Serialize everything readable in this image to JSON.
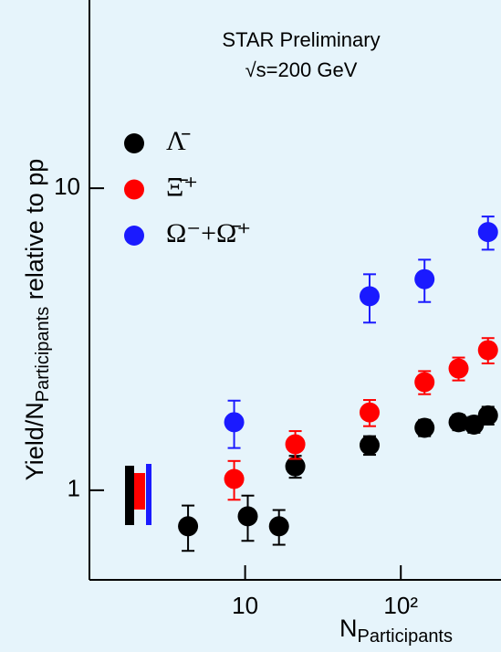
{
  "chart_data": {
    "type": "scatter",
    "annotations": [
      "STAR Preliminary",
      "√s=200 GeV"
    ],
    "ylabel": {
      "main": "Yield/N",
      "sub": "Participants",
      "rest": " relative to pp"
    },
    "xlabel": {
      "main": "N",
      "sub": "Participants"
    },
    "xlog": true,
    "ylog": true,
    "xlim": [
      1,
      440
    ],
    "ylim": [
      0.505,
      42
    ],
    "xticks": [
      10,
      {
        "value": 100,
        "label": "10²"
      }
    ],
    "yticks": [
      1,
      10
    ],
    "series": [
      {
        "name": "Λ̄",
        "color": "#000000",
        "x": [
          4.3,
          10.4,
          16.5,
          21,
          63,
          142,
          235,
          295,
          363
        ],
        "values": [
          0.76,
          0.82,
          0.76,
          1.2,
          1.41,
          1.61,
          1.68,
          1.65,
          1.77
        ],
        "errors": [
          0.13,
          0.14,
          0.1,
          0.1,
          0.1,
          0.1,
          0.1,
          0.1,
          0.12
        ]
      },
      {
        "name": "Ξ̄⁺",
        "color": "#ff0000",
        "x": [
          8.5,
          21,
          63,
          142,
          235,
          363
        ],
        "values": [
          1.09,
          1.42,
          1.81,
          2.28,
          2.53,
          2.91
        ],
        "errors": [
          0.16,
          0.15,
          0.18,
          0.2,
          0.22,
          0.28
        ]
      },
      {
        "name": "Ω⁻+Ω̄⁺",
        "color": "#1a1aff",
        "x": [
          8.5,
          63,
          142,
          363
        ],
        "values": [
          1.68,
          4.39,
          5.0,
          7.16
        ],
        "errors": [
          0.3,
          0.8,
          0.8,
          0.9
        ]
      }
    ]
  }
}
